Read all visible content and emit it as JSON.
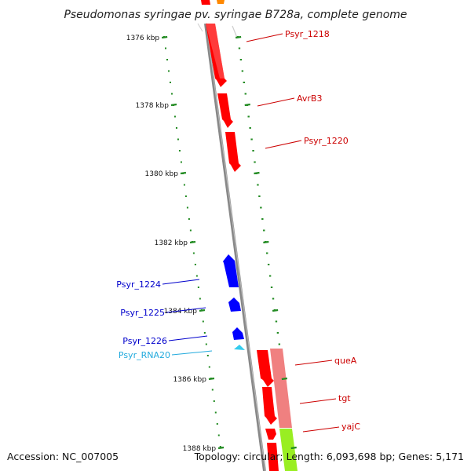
{
  "title": "Pseudomonas syringae pv. syringae B728a, complete genome",
  "footer": {
    "accession": "Accession: NC_007005",
    "summary": "Topology: circular; Length: 6,093,698 bp; Genes: 5,171"
  },
  "colors": {
    "forward_gene": "#ff0000",
    "reverse_gene": "#0000ff",
    "rna": "#33ccee",
    "backbone": "#888888",
    "tick": "#228b22",
    "operon_pink": "#f08080",
    "operon_green": "#99ee22"
  },
  "kbp_labels": [
    "1376 kbp",
    "1378 kbp",
    "1380 kbp",
    "1382 kbp",
    "1384 kbp",
    "1386 kbp",
    "1388 kbp"
  ],
  "features": [
    {
      "name": "Psyr_1218",
      "strand": "forward",
      "color": "#cc0000"
    },
    {
      "name": "AvrB3",
      "strand": "forward",
      "color": "#cc0000"
    },
    {
      "name": "Psyr_1220",
      "strand": "forward",
      "color": "#cc0000"
    },
    {
      "name": "Psyr_1224",
      "strand": "reverse",
      "color": "#0000cc"
    },
    {
      "name": "Psyr_1225",
      "strand": "reverse",
      "color": "#0000cc"
    },
    {
      "name": "Psyr_1226",
      "strand": "reverse",
      "color": "#0000cc"
    },
    {
      "name": "Psyr_RNA20",
      "strand": "reverse",
      "color": "#22aadd"
    },
    {
      "name": "queA",
      "strand": "forward",
      "color": "#cc0000"
    },
    {
      "name": "tgt",
      "strand": "forward",
      "color": "#cc0000"
    },
    {
      "name": "yajC",
      "strand": "forward",
      "color": "#cc0000"
    }
  ]
}
